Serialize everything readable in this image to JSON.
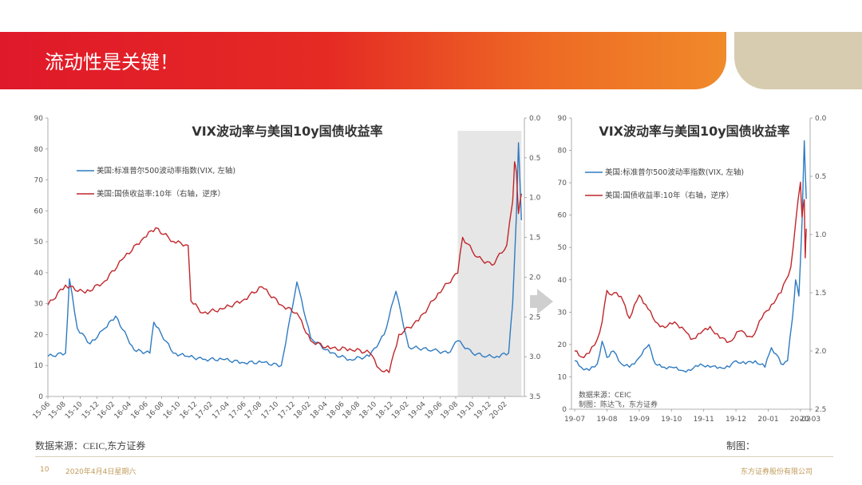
{
  "slide": {
    "title": "流动性是关键！",
    "source": "数据来源：CEIC,东方证券",
    "credit": "制图：",
    "page_number": "10",
    "date": "2020年4月4日星期六",
    "company": "东方证券股份有限公司"
  },
  "colors": {
    "vix": "#2f7bc1",
    "yield": "#c0262a",
    "highlight": "#e6e6e6"
  },
  "chart_data": [
    {
      "type": "line",
      "title": "VIX波动率与美国10y国债收益率",
      "x_ticks": [
        "15-06",
        "15-08",
        "15-10",
        "15-12",
        "16-02",
        "16-04",
        "16-06",
        "16-08",
        "16-10",
        "16-12",
        "17-02",
        "17-04",
        "17-06",
        "17-08",
        "17-10",
        "17-12",
        "18-02",
        "18-04",
        "18-06",
        "18-08",
        "18-10",
        "18-12",
        "19-02",
        "19-04",
        "19-06",
        "19-08",
        "19-10",
        "19-12",
        "20-02"
      ],
      "left_axis": {
        "ticks": [
          "0",
          "10",
          "20",
          "30",
          "40",
          "50",
          "60",
          "70",
          "80",
          "90"
        ],
        "ylim": [
          0,
          90
        ]
      },
      "right_axis": {
        "ticks": [
          "0.0",
          "0.5",
          "1.0",
          "1.5",
          "2.0",
          "2.5",
          "3.0",
          "3.5"
        ],
        "ylim": [
          0.0,
          3.5
        ],
        "reversed": true
      },
      "highlight_range": [
        "19-08",
        "20-03"
      ],
      "series": [
        {
          "name": "美国:标准普尔500波动率指数(VIX, 左轴)",
          "axis": "left",
          "x": [
            2015.42,
            2015.6,
            2015.64,
            2015.72,
            2015.85,
            2016.0,
            2016.11,
            2016.3,
            2016.46,
            2016.5,
            2016.7,
            2016.84,
            2017.0,
            2017.2,
            2017.4,
            2017.6,
            2017.8,
            2017.96,
            2018.1,
            2018.3,
            2018.5,
            2018.7,
            2018.85,
            2018.97,
            2019.1,
            2019.35,
            2019.5,
            2019.6,
            2019.75,
            2019.9,
            2020.0,
            2020.12,
            2020.16,
            2020.2,
            2020.22,
            2020.25
          ],
          "values": [
            13,
            14,
            38,
            22,
            17,
            22,
            26,
            15,
            14,
            24,
            14,
            13,
            12,
            12,
            11,
            11,
            10,
            37,
            19,
            14,
            12,
            13,
            20,
            34,
            16,
            15,
            14,
            18,
            14,
            13,
            13,
            14,
            30,
            60,
            82,
            57
          ]
        },
        {
          "name": "美国:国债收益率:10年（右轴，逆序）",
          "axis": "right",
          "x": [
            2015.42,
            2015.6,
            2015.8,
            2016.0,
            2016.2,
            2016.4,
            2016.52,
            2016.7,
            2016.85,
            2016.88,
            2017.0,
            2017.2,
            2017.4,
            2017.6,
            2017.8,
            2017.96,
            2018.1,
            2018.3,
            2018.5,
            2018.7,
            2018.8,
            2018.9,
            2019.0,
            2019.2,
            2019.4,
            2019.6,
            2019.65,
            2019.8,
            2019.95,
            2020.1,
            2020.16,
            2020.18,
            2020.2,
            2020.22,
            2020.25
          ],
          "values": [
            2.35,
            2.1,
            2.2,
            2.05,
            1.75,
            1.5,
            1.38,
            1.55,
            1.6,
            2.3,
            2.45,
            2.4,
            2.3,
            2.12,
            2.35,
            2.45,
            2.8,
            2.9,
            2.9,
            2.95,
            3.15,
            3.2,
            2.72,
            2.55,
            2.2,
            1.95,
            1.5,
            1.75,
            1.85,
            1.6,
            1.05,
            0.55,
            0.7,
            1.2,
            0.95
          ]
        }
      ]
    },
    {
      "type": "line",
      "title": "VIX波动率与美国10y国债收益率",
      "x_ticks": [
        "19-07",
        "19-08",
        "19-09",
        "19-10",
        "19-11",
        "19-12",
        "20-01",
        "20-02",
        "20-03"
      ],
      "left_axis": {
        "ticks": [
          "0",
          "10",
          "20",
          "30",
          "40",
          "50",
          "60",
          "70",
          "80",
          "90"
        ],
        "ylim": [
          0,
          90
        ]
      },
      "right_axis": {
        "ticks": [
          "0.0",
          "0.5",
          "1.0",
          "1.5",
          "2.0",
          "2.5"
        ],
        "ylim": [
          0.0,
          2.5
        ],
        "reversed": true
      },
      "source_note": "数据来源：CEIC",
      "maker_note": "制图：陈达飞，东方证券",
      "series": [
        {
          "name": "美国:标准普尔500波动率指数(VIX, 左轴)",
          "axis": "left",
          "x": [
            0,
            0.2,
            0.45,
            0.7,
            0.85,
            1.0,
            1.2,
            1.45,
            1.7,
            2.0,
            2.3,
            2.5,
            2.7,
            3.0,
            3.3,
            3.6,
            3.9,
            4.2,
            4.5,
            4.8,
            5.0,
            5.3,
            5.6,
            5.9,
            6.1,
            6.25,
            6.4,
            6.6,
            6.75,
            6.85,
            6.95,
            7.05,
            7.12,
            7.18
          ],
          "values": [
            15,
            13,
            12,
            14,
            21,
            16,
            18,
            14,
            13,
            16,
            20,
            14,
            13,
            13,
            12,
            12,
            14,
            13,
            13,
            13,
            15,
            14,
            15,
            13,
            19,
            17,
            14,
            15,
            28,
            40,
            35,
            58,
            83,
            65
          ]
        },
        {
          "name": "美国:国债收益率:10年（右轴，逆序）",
          "axis": "right",
          "x": [
            0,
            0.2,
            0.45,
            0.7,
            0.85,
            1.0,
            1.15,
            1.3,
            1.5,
            1.7,
            2.0,
            2.2,
            2.5,
            2.8,
            3.1,
            3.4,
            3.6,
            3.9,
            4.2,
            4.5,
            4.8,
            5.1,
            5.5,
            5.8,
            6.1,
            6.4,
            6.7,
            6.85,
            7.0,
            7.05,
            7.12,
            7.15,
            7.18
          ],
          "values": [
            2.0,
            2.05,
            2.02,
            1.9,
            1.75,
            1.48,
            1.52,
            1.5,
            1.57,
            1.72,
            1.52,
            1.6,
            1.75,
            1.8,
            1.75,
            1.82,
            1.9,
            1.85,
            1.79,
            1.89,
            1.92,
            1.83,
            1.88,
            1.72,
            1.6,
            1.5,
            1.28,
            0.9,
            0.55,
            0.85,
            0.7,
            1.2,
            0.95
          ]
        }
      ]
    }
  ]
}
